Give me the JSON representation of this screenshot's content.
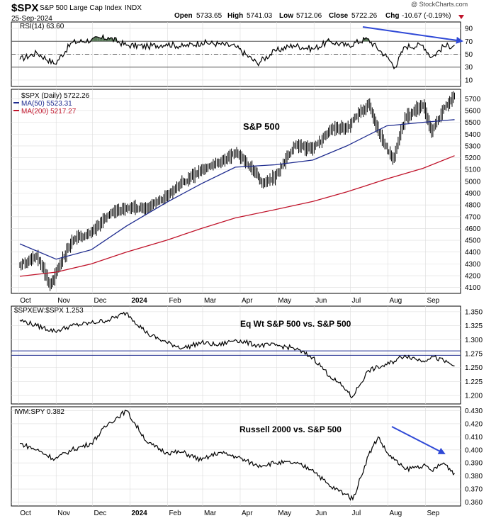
{
  "header": {
    "symbol": "$SPX",
    "name": "S&P 500 Large Cap Index",
    "exchange": "INDX",
    "date": "25-Sep-2024",
    "open_label": "Open",
    "open": "5733.65",
    "high_label": "High",
    "high": "5741.03",
    "low_label": "Low",
    "low": "5712.06",
    "close_label": "Close",
    "close": "5722.26",
    "chg_label": "Chg",
    "chg": "-10.67 (-0.19%)",
    "watermark": "@ StockCharts.com"
  },
  "colors": {
    "price": "#000000",
    "ma50": "#1f2c8f",
    "ma200": "#c0142b",
    "arrow": "#2f49d6",
    "rsi_fill": "#5b7a5b",
    "ref_line": "#1f2c8f",
    "grid": "#dcdcdc"
  },
  "x_axis": {
    "labels": [
      "Oct",
      "Nov",
      "Dec",
      "2024",
      "Feb",
      "Mar",
      "Apr",
      "May",
      "Jun",
      "Jul",
      "Aug",
      "Sep"
    ]
  },
  "chart_data": [
    {
      "type": "line",
      "panel": "rsi",
      "legend": "RSI(14) 63.60",
      "ylim": [
        0,
        100
      ],
      "yticks": [
        10,
        30,
        50,
        70,
        90
      ],
      "levels": [
        30,
        50,
        70
      ],
      "x": [
        "2023-10-02",
        "2023-10-16",
        "2023-10-31",
        "2023-11-14",
        "2023-11-30",
        "2023-12-14",
        "2023-12-29",
        "2024-01-16",
        "2024-01-31",
        "2024-02-14",
        "2024-02-29",
        "2024-03-14",
        "2024-03-28",
        "2024-04-15",
        "2024-04-30",
        "2024-05-15",
        "2024-05-31",
        "2024-06-14",
        "2024-06-28",
        "2024-07-15",
        "2024-07-31",
        "2024-08-07",
        "2024-08-15",
        "2024-08-30",
        "2024-09-06",
        "2024-09-16",
        "2024-09-25"
      ],
      "values": [
        42,
        52,
        35,
        68,
        72,
        76,
        64,
        62,
        66,
        62,
        68,
        66,
        62,
        36,
        55,
        64,
        58,
        70,
        63,
        74,
        46,
        30,
        62,
        64,
        45,
        62,
        64
      ]
    },
    {
      "type": "line",
      "panel": "price",
      "legend": "$SPX (Daily) 5722.26",
      "annotation": "S&P 500",
      "ylim": [
        4050,
        5780
      ],
      "yticks": [
        4100,
        4200,
        4300,
        4400,
        4500,
        4600,
        4700,
        4800,
        4900,
        5000,
        5100,
        5200,
        5300,
        5400,
        5500,
        5600,
        5700
      ],
      "x": [
        "2023-10-02",
        "2023-10-16",
        "2023-10-27",
        "2023-11-01",
        "2023-11-14",
        "2023-11-30",
        "2023-12-14",
        "2023-12-29",
        "2024-01-16",
        "2024-01-31",
        "2024-02-14",
        "2024-02-29",
        "2024-03-14",
        "2024-03-28",
        "2024-04-15",
        "2024-04-19",
        "2024-04-30",
        "2024-05-15",
        "2024-05-31",
        "2024-06-14",
        "2024-06-28",
        "2024-07-16",
        "2024-07-24",
        "2024-08-05",
        "2024-08-15",
        "2024-08-30",
        "2024-09-06",
        "2024-09-16",
        "2024-09-25"
      ],
      "values": [
        4290,
        4370,
        4120,
        4230,
        4500,
        4570,
        4720,
        4770,
        4780,
        4870,
        5000,
        5100,
        5150,
        5250,
        5060,
        4970,
        5040,
        5300,
        5270,
        5440,
        5460,
        5660,
        5420,
        5190,
        5540,
        5650,
        5410,
        5630,
        5722
      ],
      "series": [
        {
          "name": "MA(50) 5523.31",
          "x": [
            "2023-10-02",
            "2023-11-01",
            "2023-11-30",
            "2023-12-29",
            "2024-01-31",
            "2024-02-29",
            "2024-03-28",
            "2024-04-30",
            "2024-05-31",
            "2024-06-28",
            "2024-07-31",
            "2024-08-30",
            "2024-09-25"
          ],
          "values": [
            4470,
            4340,
            4420,
            4620,
            4820,
            4980,
            5120,
            5140,
            5180,
            5300,
            5470,
            5500,
            5523
          ]
        },
        {
          "name": "MA(200) 5217.27",
          "x": [
            "2023-10-02",
            "2023-11-01",
            "2023-11-30",
            "2023-12-29",
            "2024-01-31",
            "2024-02-29",
            "2024-03-28",
            "2024-04-30",
            "2024-05-31",
            "2024-06-28",
            "2024-07-31",
            "2024-08-30",
            "2024-09-25"
          ],
          "values": [
            4195,
            4230,
            4300,
            4400,
            4500,
            4600,
            4690,
            4760,
            4830,
            4910,
            5020,
            5110,
            5217
          ]
        }
      ]
    },
    {
      "type": "line",
      "panel": "ratio",
      "legend": "$SPXEW:$SPX 1.253",
      "annotation": "Eq Wt S&P 500 vs. S&P 500",
      "ylim": [
        1.185,
        1.36
      ],
      "yticks": [
        1.2,
        1.225,
        1.25,
        1.275,
        1.3,
        1.325,
        1.35
      ],
      "levels": [
        1.28,
        1.272
      ],
      "x": [
        "2023-10-02",
        "2023-10-16",
        "2023-10-31",
        "2023-11-14",
        "2023-11-30",
        "2023-12-14",
        "2023-12-29",
        "2024-01-16",
        "2024-01-31",
        "2024-02-14",
        "2024-02-29",
        "2024-03-14",
        "2024-03-28",
        "2024-04-15",
        "2024-04-30",
        "2024-05-15",
        "2024-05-31",
        "2024-06-14",
        "2024-06-28",
        "2024-07-02",
        "2024-07-16",
        "2024-07-31",
        "2024-08-15",
        "2024-08-30",
        "2024-09-06",
        "2024-09-16",
        "2024-09-25"
      ],
      "values": [
        1.335,
        1.325,
        1.315,
        1.325,
        1.33,
        1.335,
        1.348,
        1.31,
        1.295,
        1.285,
        1.295,
        1.29,
        1.3,
        1.29,
        1.29,
        1.285,
        1.268,
        1.235,
        1.21,
        1.196,
        1.245,
        1.255,
        1.272,
        1.262,
        1.27,
        1.262,
        1.253
      ]
    },
    {
      "type": "line",
      "panel": "ratio2",
      "legend": "IWM:SPY 0.382",
      "annotation": "Russell 2000 vs. S&P 500",
      "ylim": [
        0.357,
        0.433
      ],
      "yticks": [
        0.36,
        0.37,
        0.38,
        0.39,
        0.4,
        0.41,
        0.42,
        0.43
      ],
      "x": [
        "2023-10-02",
        "2023-10-16",
        "2023-10-31",
        "2023-11-14",
        "2023-11-30",
        "2023-12-14",
        "2023-12-29",
        "2024-01-16",
        "2024-01-31",
        "2024-02-14",
        "2024-02-29",
        "2024-03-14",
        "2024-03-28",
        "2024-04-15",
        "2024-04-30",
        "2024-05-15",
        "2024-05-31",
        "2024-06-14",
        "2024-06-28",
        "2024-07-03",
        "2024-07-16",
        "2024-07-24",
        "2024-07-31",
        "2024-08-15",
        "2024-08-30",
        "2024-09-06",
        "2024-09-16",
        "2024-09-25"
      ],
      "values": [
        0.405,
        0.4,
        0.393,
        0.4,
        0.405,
        0.42,
        0.43,
        0.405,
        0.398,
        0.398,
        0.392,
        0.398,
        0.395,
        0.388,
        0.39,
        0.39,
        0.385,
        0.372,
        0.366,
        0.362,
        0.396,
        0.41,
        0.398,
        0.385,
        0.388,
        0.384,
        0.39,
        0.382
      ]
    }
  ]
}
